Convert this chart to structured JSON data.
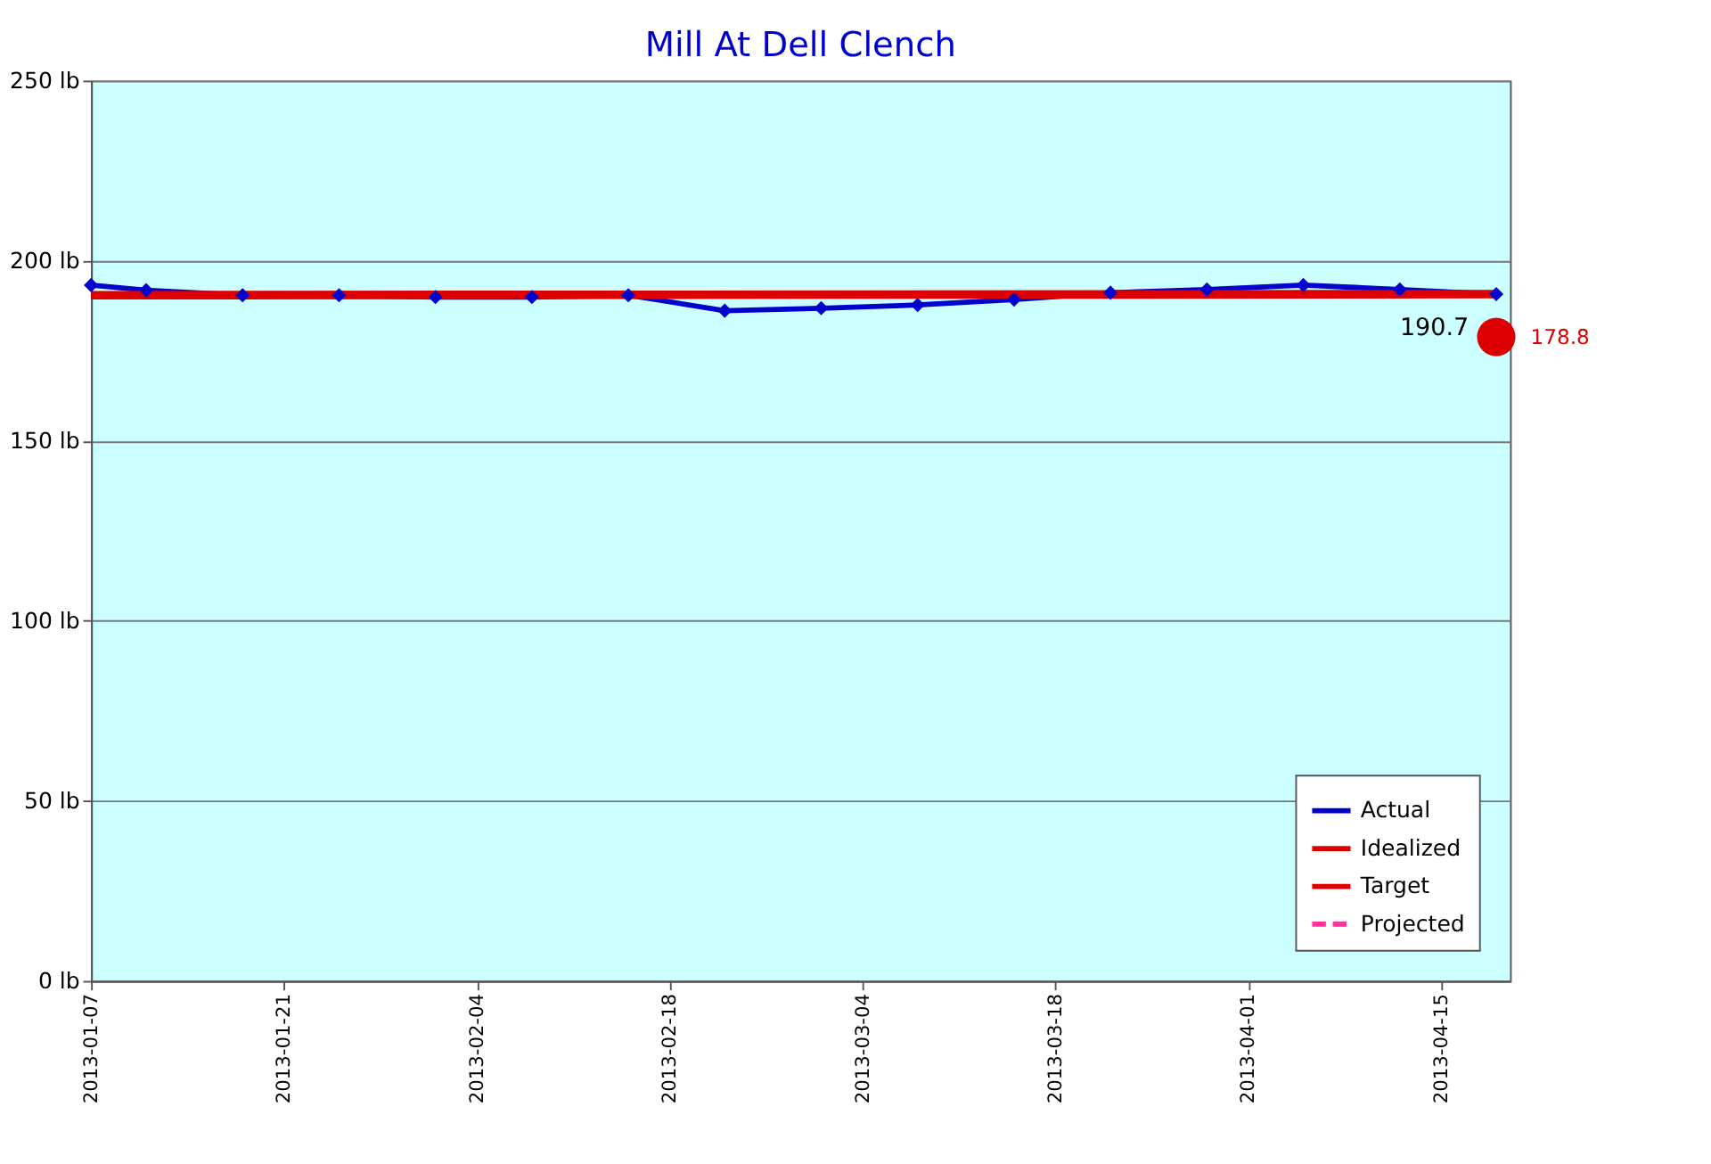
{
  "chart_data": {
    "type": "line",
    "title": "Mill At Dell Clench",
    "x": [
      "2013-01-07",
      "2013-01-11",
      "2013-01-18",
      "2013-01-25",
      "2013-02-01",
      "2013-02-08",
      "2013-02-15",
      "2013-02-22",
      "2013-03-01",
      "2013-03-08",
      "2013-03-15",
      "2013-03-22",
      "2013-03-29",
      "2013-04-05",
      "2013-04-12",
      "2013-04-19"
    ],
    "series": [
      {
        "name": "Actual",
        "color": "#0000cc",
        "marker": "diamond",
        "values": [
          193.2,
          191.8,
          190.4,
          190.4,
          189.9,
          189.9,
          190.4,
          186.1,
          186.8,
          187.7,
          189.2,
          191.1,
          192.0,
          193.2,
          192.0,
          190.7
        ],
        "value_labels": [
          null,
          null,
          null,
          null,
          null,
          null,
          null,
          null,
          null,
          null,
          null,
          null,
          null,
          null,
          null,
          "190.7"
        ]
      },
      {
        "name": "Idealized",
        "color": "#dd0000",
        "x": [
          "2013-01-07",
          "2013-04-19"
        ],
        "values": [
          190.4,
          190.7
        ]
      },
      {
        "name": "Target",
        "type": "scatter",
        "color": "#dd0000",
        "marker": "circle",
        "x": [
          "2013-04-19"
        ],
        "values": [
          178.8
        ],
        "value_labels": [
          "178.8"
        ]
      },
      {
        "name": "Projected",
        "color": "#ff3399",
        "line_style": "dashed",
        "values": [
          null,
          null,
          null,
          null,
          null,
          null,
          null,
          null,
          null,
          null,
          null,
          null,
          null,
          null,
          null,
          null
        ]
      }
    ],
    "xlim": [
      "2013-01-07",
      "2013-04-20"
    ],
    "xticks": [
      "2013-01-07",
      "2013-01-21",
      "2013-02-04",
      "2013-02-18",
      "2013-03-04",
      "2013-03-18",
      "2013-04-01",
      "2013-04-15"
    ],
    "ylim": [
      0,
      250
    ],
    "yticks": [
      {
        "value": 0,
        "label": "0 lb"
      },
      {
        "value": 50,
        "label": "50 lb"
      },
      {
        "value": 100,
        "label": "100 lb"
      },
      {
        "value": 150,
        "label": "150 lb"
      },
      {
        "value": 200,
        "label": "200 lb"
      },
      {
        "value": 250,
        "label": "250 lb"
      }
    ],
    "grid": "y",
    "legend": "bottom right"
  }
}
